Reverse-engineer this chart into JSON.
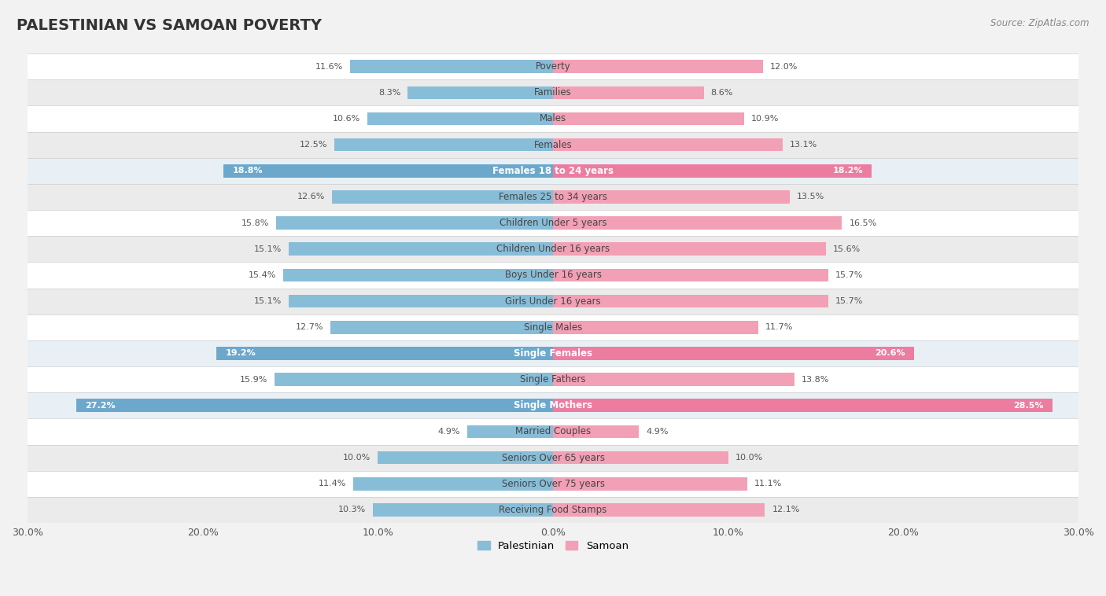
{
  "title": "PALESTINIAN VS SAMOAN POVERTY",
  "source": "Source: ZipAtlas.com",
  "categories": [
    "Poverty",
    "Families",
    "Males",
    "Females",
    "Females 18 to 24 years",
    "Females 25 to 34 years",
    "Children Under 5 years",
    "Children Under 16 years",
    "Boys Under 16 years",
    "Girls Under 16 years",
    "Single Males",
    "Single Females",
    "Single Fathers",
    "Single Mothers",
    "Married Couples",
    "Seniors Over 65 years",
    "Seniors Over 75 years",
    "Receiving Food Stamps"
  ],
  "palestinian_values": [
    11.6,
    8.3,
    10.6,
    12.5,
    18.8,
    12.6,
    15.8,
    15.1,
    15.4,
    15.1,
    12.7,
    19.2,
    15.9,
    27.2,
    4.9,
    10.0,
    11.4,
    10.3
  ],
  "samoan_values": [
    12.0,
    8.6,
    10.9,
    13.1,
    18.2,
    13.5,
    16.5,
    15.6,
    15.7,
    15.7,
    11.7,
    20.6,
    13.8,
    28.5,
    4.9,
    10.0,
    11.1,
    12.1
  ],
  "palestinian_color": "#88BDD8",
  "samoan_color": "#F2A0B5",
  "highlight_palestinian_color": "#6CA8CC",
  "highlight_samoan_color": "#EC7DA0",
  "row_colors": [
    "#FFFFFF",
    "#EBEBEB"
  ],
  "highlight_row_color": "#D8E8F0",
  "highlight_row_color_samoan": "#F5D8E3",
  "background_color": "#F2F2F2",
  "highlight_rows": [
    4,
    11,
    13
  ],
  "axis_max": 30.0,
  "bar_height": 0.5,
  "title_fontsize": 14,
  "label_fontsize": 8.5,
  "value_fontsize": 8.0,
  "xtick_fontsize": 9
}
